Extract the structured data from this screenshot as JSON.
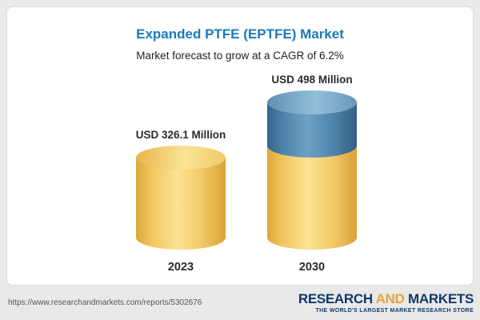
{
  "page": {
    "background_color": "#e9e9e9",
    "card_color": "#ffffff"
  },
  "header": {
    "title": "Expanded PTFE (EPTFE) Market",
    "subtitle": "Market forecast to grow at a CAGR of 6.2%",
    "title_color": "#1a7abc"
  },
  "chart_data": {
    "type": "bar",
    "chart_style": "3d-cylinder",
    "title": "Expanded PTFE (EPTFE) Market",
    "subtitle": "Market forecast to grow at a CAGR of 6.2%",
    "categories": [
      "2023",
      "2030"
    ],
    "values": [
      326.1,
      498
    ],
    "value_labels": [
      "USD 326.1 Million",
      "USD 498 Million"
    ],
    "unit": "USD Million",
    "cagr": "6.2%",
    "xlabel": "",
    "ylabel": "",
    "grid": false,
    "legend": [],
    "notes": "2030 cylinder is stacked: gold base equal to the 2023 value with a blue growth segment on top",
    "colors": {
      "gold": "#f2c763",
      "gold_light": "#fce294",
      "gold_dark": "#dca73c",
      "blue": "#4f87ae",
      "blue_light": "#86b4d0",
      "blue_dark": "#36648c"
    }
  },
  "footer": {
    "url": "https://www.researchandmarkets.com/reports/5302676",
    "logo": {
      "word1": "RESEARCH",
      "word2": "AND",
      "word3": "MARKETS",
      "tagline": "THE WORLD'S LARGEST MARKET RESEARCH STORE",
      "navy": "#12386b",
      "orange": "#e8a33c"
    }
  }
}
